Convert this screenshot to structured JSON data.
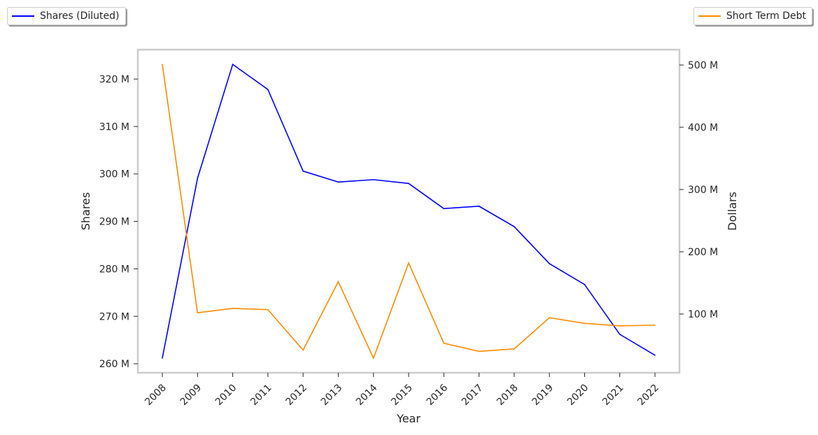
{
  "chart_data": {
    "type": "line",
    "xlabel": "Year",
    "x": [
      2008,
      2009,
      2010,
      2011,
      2012,
      2013,
      2014,
      2015,
      2016,
      2017,
      2018,
      2019,
      2020,
      2021,
      2022
    ],
    "series": [
      {
        "name": "Shares (Diluted)",
        "axis": "left",
        "color": "#0000ff",
        "values": [
          261.2,
          299.1,
          323.1,
          317.8,
          300.6,
          298.3,
          298.8,
          298.0,
          292.7,
          293.2,
          288.9,
          281.1,
          276.7,
          266.2,
          261.8
        ]
      },
      {
        "name": "Short Term Debt",
        "axis": "right",
        "color": "#ff8c00",
        "values": [
          501,
          102,
          109,
          107,
          42,
          152,
          29,
          182,
          53,
          40,
          44,
          94,
          85,
          81,
          82
        ]
      }
    ],
    "left_axis": {
      "label": "Shares",
      "unit": "M",
      "ylim": [
        258.1,
        326.2
      ],
      "ticks": [
        260,
        270,
        280,
        290,
        300,
        310,
        320
      ],
      "tick_labels": [
        "260 M",
        "270 M",
        "280 M",
        "290 M",
        "300 M",
        "310 M",
        "320 M"
      ]
    },
    "right_axis": {
      "label": "Dollars",
      "unit": "M",
      "ylim": [
        5.6,
        524.7
      ],
      "ticks": [
        100,
        200,
        300,
        400,
        500
      ],
      "tick_labels": [
        "100 M",
        "200 M",
        "300 M",
        "400 M",
        "500 M"
      ]
    },
    "grid": false,
    "legend_placement": [
      "top-left",
      "top-right"
    ]
  }
}
